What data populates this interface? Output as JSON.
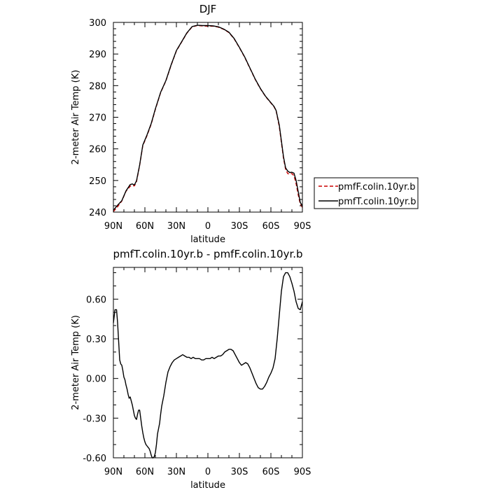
{
  "chart_data": [
    {
      "type": "line",
      "title": "DJF",
      "xlabel": "latitude",
      "ylabel": "2-meter Air Temp (K)",
      "xlim": [
        -90,
        90
      ],
      "ylim": [
        240,
        300
      ],
      "xticks": [
        -90,
        -60,
        -30,
        0,
        30,
        60,
        90
      ],
      "xticklabels": [
        "90N",
        "60N",
        "30N",
        "0",
        "30S",
        "60S",
        "90S"
      ],
      "yticks": [
        240,
        250,
        260,
        270,
        280,
        290,
        300
      ],
      "yticklabels": [
        "240",
        "250",
        "260",
        "270",
        "280",
        "290",
        "300"
      ],
      "grid": false,
      "legend_position": "right",
      "series": [
        {
          "name": "pmfF.colin.10yr.b",
          "color": "#cc0000",
          "dash": "dashed",
          "x": [
            -90,
            -86,
            -82,
            -78,
            -74,
            -72,
            -70,
            -68,
            -65,
            -62,
            -58,
            -54,
            -50,
            -45,
            -40,
            -35,
            -30,
            -25,
            -20,
            -15,
            -10,
            -5,
            0,
            5,
            10,
            15,
            20,
            25,
            30,
            35,
            40,
            45,
            50,
            55,
            60,
            63,
            65,
            68,
            70,
            72,
            74,
            76,
            78,
            80,
            82,
            84,
            86,
            88,
            90
          ],
          "y": [
            240.2,
            241.7,
            243.5,
            246.6,
            248.2,
            248.4,
            248.3,
            249.6,
            254.8,
            261.0,
            264.2,
            267.8,
            272.5,
            277.8,
            281.5,
            286.5,
            291.0,
            293.8,
            296.6,
            298.6,
            299.0,
            298.9,
            298.8,
            298.8,
            298.5,
            297.8,
            296.8,
            294.8,
            292.0,
            289.0,
            285.5,
            282.0,
            279.0,
            276.5,
            274.5,
            273.3,
            272.0,
            267.0,
            262.0,
            257.0,
            253.5,
            252.2,
            252.0,
            252.2,
            251.5,
            249.0,
            245.5,
            242.5,
            241.5
          ]
        },
        {
          "name": "pmfT.colin.10yr.b",
          "color": "#000000",
          "dash": "solid",
          "x": [
            -90,
            -86,
            -82,
            -78,
            -74,
            -72,
            -70,
            -68,
            -65,
            -62,
            -58,
            -54,
            -50,
            -45,
            -40,
            -35,
            -30,
            -25,
            -20,
            -15,
            -10,
            -5,
            0,
            5,
            10,
            15,
            20,
            25,
            30,
            35,
            40,
            45,
            50,
            55,
            60,
            63,
            65,
            68,
            70,
            72,
            74,
            76,
            78,
            80,
            82,
            84,
            86,
            88,
            90
          ],
          "y": [
            240.6,
            242.2,
            243.6,
            246.7,
            248.7,
            248.9,
            248.6,
            249.9,
            254.9,
            261.2,
            264.4,
            268.0,
            272.7,
            277.9,
            281.6,
            286.6,
            291.1,
            293.9,
            296.7,
            298.7,
            299.1,
            299.0,
            299.0,
            298.9,
            298.6,
            297.9,
            296.9,
            294.9,
            292.1,
            289.1,
            285.6,
            282.1,
            279.1,
            276.6,
            274.6,
            273.4,
            272.1,
            267.5,
            262.5,
            257.5,
            254.0,
            253.0,
            252.5,
            252.6,
            252.3,
            250.0,
            246.5,
            243.0,
            242.0
          ]
        }
      ]
    },
    {
      "type": "line",
      "title": "pmfT.colin.10yr.b - pmfF.colin.10yr.b",
      "xlabel": "latitude",
      "ylabel": "2-meter Air Temp (K)",
      "xlim": [
        -90,
        90
      ],
      "ylim": [
        -0.6,
        0.84
      ],
      "xticks": [
        -90,
        -60,
        -30,
        0,
        30,
        60,
        90
      ],
      "xticklabels": [
        "90N",
        "60N",
        "30N",
        "0",
        "30S",
        "60S",
        "90S"
      ],
      "yticks": [
        -0.6,
        -0.3,
        0.0,
        0.3,
        0.6
      ],
      "yticklabels": [
        "-0.60",
        "-0.30",
        "0.00",
        "0.30",
        "0.60"
      ],
      "grid": false,
      "series": [
        {
          "color": "#000000",
          "dash": "solid",
          "x": [
            -90,
            -88.5,
            -87,
            -86,
            -85,
            -84,
            -83,
            -82,
            -81,
            -80,
            -79,
            -78,
            -77,
            -76,
            -75,
            -74,
            -73,
            -72,
            -71,
            -70,
            -69,
            -68,
            -67,
            -66,
            -65,
            -64,
            -63,
            -62,
            -61,
            -60,
            -59,
            -58,
            -57,
            -56,
            -55,
            -54,
            -53,
            -52,
            -51,
            -50,
            -49,
            -48,
            -47,
            -46,
            -45,
            -44,
            -42,
            -40,
            -38,
            -36,
            -34,
            -32,
            -30,
            -28,
            -26,
            -24,
            -22,
            -20,
            -18,
            -16,
            -14,
            -12,
            -10,
            -8,
            -6,
            -4,
            -2,
            0,
            2,
            4,
            6,
            8,
            10,
            12,
            14,
            16,
            18,
            20,
            22,
            24,
            26,
            28,
            30,
            32,
            34,
            36,
            38,
            40,
            42,
            44,
            46,
            48,
            50,
            52,
            54,
            56,
            58,
            60,
            62,
            64,
            66,
            68,
            70,
            72,
            74,
            76,
            78,
            80,
            82,
            84,
            86,
            88,
            90
          ],
          "y": [
            0.42,
            0.52,
            0.52,
            0.42,
            0.28,
            0.14,
            0.11,
            0.1,
            0.06,
            0.01,
            -0.01,
            -0.05,
            -0.08,
            -0.12,
            -0.15,
            -0.14,
            -0.17,
            -0.2,
            -0.24,
            -0.28,
            -0.3,
            -0.31,
            -0.27,
            -0.24,
            -0.24,
            -0.3,
            -0.36,
            -0.41,
            -0.45,
            -0.48,
            -0.5,
            -0.51,
            -0.52,
            -0.53,
            -0.55,
            -0.58,
            -0.6,
            -0.6,
            -0.59,
            -0.56,
            -0.5,
            -0.42,
            -0.38,
            -0.34,
            -0.27,
            -0.21,
            -0.13,
            -0.03,
            0.05,
            0.09,
            0.12,
            0.14,
            0.15,
            0.16,
            0.17,
            0.18,
            0.17,
            0.16,
            0.16,
            0.15,
            0.16,
            0.15,
            0.15,
            0.15,
            0.14,
            0.14,
            0.15,
            0.15,
            0.15,
            0.16,
            0.15,
            0.16,
            0.17,
            0.17,
            0.18,
            0.2,
            0.21,
            0.22,
            0.22,
            0.21,
            0.18,
            0.15,
            0.12,
            0.1,
            0.11,
            0.12,
            0.11,
            0.08,
            0.04,
            0.0,
            -0.04,
            -0.07,
            -0.08,
            -0.08,
            -0.06,
            -0.03,
            0.01,
            0.04,
            0.08,
            0.15,
            0.3,
            0.48,
            0.66,
            0.77,
            0.8,
            0.8,
            0.77,
            0.72,
            0.66,
            0.58,
            0.53,
            0.52,
            0.58
          ]
        }
      ]
    }
  ]
}
